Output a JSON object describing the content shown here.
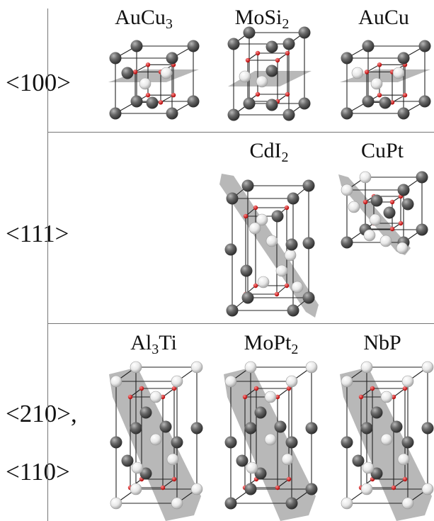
{
  "rows": [
    {
      "label": "<100>"
    },
    {
      "label": "<111>"
    },
    {
      "label_1": "<210>,",
      "label_2": "<110>"
    }
  ],
  "structures": [
    {
      "id": "aucu3",
      "name": "AuCu",
      "sub": "3",
      "suffix": ""
    },
    {
      "id": "mosi2",
      "name": "MoSi",
      "sub": "2",
      "suffix": ""
    },
    {
      "id": "aucu",
      "name": "AuCu",
      "sub": "",
      "suffix": ""
    },
    {
      "id": "cdi2",
      "name": "CdI",
      "sub": "2",
      "suffix": ""
    },
    {
      "id": "cupt",
      "name": "CuPt",
      "sub": "",
      "suffix": ""
    },
    {
      "id": "al3ti",
      "name": "Al",
      "sub": "3",
      "suffix": "Ti"
    },
    {
      "id": "mopt2",
      "name": "MoPt",
      "sub": "2",
      "suffix": ""
    },
    {
      "id": "nbp",
      "name": "NbP",
      "sub": "",
      "suffix": ""
    }
  ],
  "colors": {
    "dark_atom": "#5c5c5c",
    "light_atom": "#f2f2f2",
    "small_atom": "#d81e1e",
    "plane": "#9a9a9a",
    "cell_edge": "#222222",
    "divider": "#777777"
  }
}
